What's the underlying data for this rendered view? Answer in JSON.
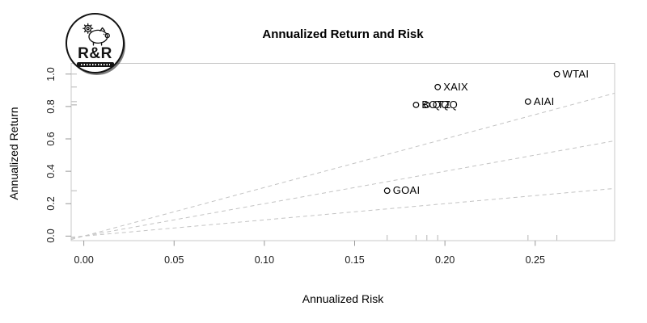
{
  "logo": {
    "text": "R&R"
  },
  "chart_data": {
    "type": "scatter",
    "title": "Annualized Return and Risk",
    "xlabel": "Annualized Risk",
    "ylabel": "Annualized Return",
    "xlim": [
      -0.007,
      0.294
    ],
    "ylim": [
      -0.028,
      1.066
    ],
    "grid": false,
    "legend": "none",
    "marker": "open-circle",
    "x_axis": {
      "tick_values": [
        0,
        0.05,
        0.1,
        0.15,
        0.2,
        0.25
      ],
      "tick_labels": [
        "0.00",
        "0.05",
        "0.10",
        "0.15",
        "0.20",
        "0.25"
      ]
    },
    "y_axis": {
      "tick_values": [
        0,
        0.2,
        0.4,
        0.6,
        0.8,
        1.0
      ],
      "tick_labels": [
        "0.0",
        "0.2",
        "0.4",
        "0.6",
        "0.8",
        "1.0"
      ]
    },
    "points": [
      {
        "label": "WTAI",
        "x": 0.262,
        "y": 1.0
      },
      {
        "label": "XAIX",
        "x": 0.196,
        "y": 0.92
      },
      {
        "label": "AIAI",
        "x": 0.246,
        "y": 0.83
      },
      {
        "label": "BOTZ",
        "x": 0.184,
        "y": 0.81
      },
      {
        "label": "QQQ",
        "x": 0.19,
        "y": 0.81
      },
      {
        "label": "GOAI",
        "x": 0.168,
        "y": 0.28
      }
    ],
    "reference_lines": [
      {
        "name": "sharpe-3",
        "slope": 3,
        "intercept": 0,
        "style": "dashed"
      },
      {
        "name": "sharpe-2",
        "slope": 2,
        "intercept": 0,
        "style": "dashed"
      },
      {
        "name": "sharpe-1",
        "slope": 1,
        "intercept": 0,
        "style": "dashed"
      }
    ],
    "rug": {
      "x_axis": true,
      "y_axis": true
    }
  },
  "colors": {
    "background": "#ffffff",
    "box_border": "#c9c9c9",
    "tick": "#999999",
    "tick_label": "#1a1a1a",
    "dashed_line": "#c3c3c3",
    "rug": "#b5b5b5",
    "point": "#000000",
    "title": "#000000",
    "logo_ink": "#131313"
  }
}
